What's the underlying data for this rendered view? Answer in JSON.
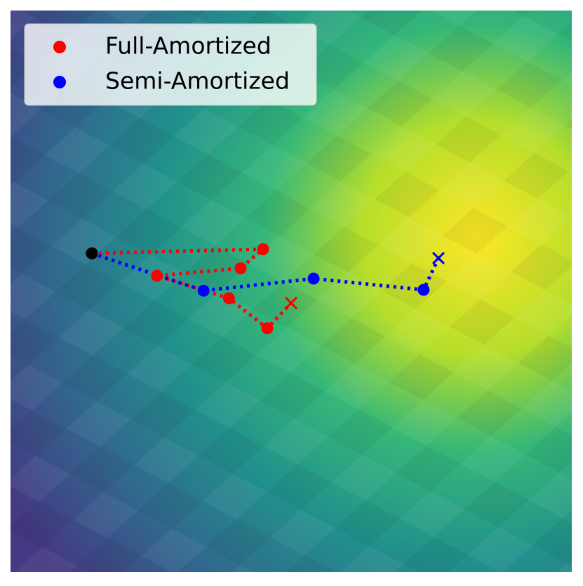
{
  "chart_data": {
    "type": "scatter",
    "xlim": [
      0,
      100
    ],
    "ylim": [
      0,
      100
    ],
    "start_color": "#000000",
    "legend": "upper left",
    "series": [
      {
        "name": "Full-Amortized",
        "color": "#ff0000",
        "x": [
          14.5,
          45,
          41,
          26.1,
          38.9,
          45.75,
          50
        ],
        "y": [
          56.75,
          57.5,
          54.1,
          52.75,
          48.75,
          43.4,
          47.9
        ]
      },
      {
        "name": "Semi-Amortized",
        "color": "#0000ff",
        "x": [
          14.5,
          34.4,
          54,
          73.6,
          76.25
        ],
        "y": [
          56.75,
          50.1,
          52.25,
          50.25,
          55.9
        ]
      }
    ]
  }
}
